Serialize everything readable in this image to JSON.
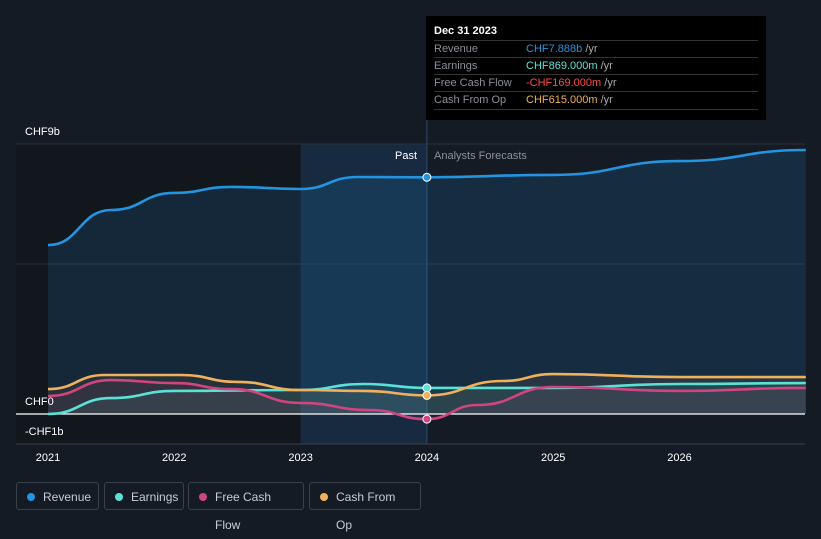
{
  "tooltip": {
    "date": "Dec 31 2023",
    "rows": [
      {
        "label": "Revenue",
        "value": "CHF7.888b",
        "unit": " /yr",
        "color": "#2394df"
      },
      {
        "label": "Earnings",
        "value": "CHF869.000m",
        "unit": " /yr",
        "color": "#5ce1d6"
      },
      {
        "label": "Free Cash Flow",
        "value": "-CHF169.000m",
        "unit": " /yr",
        "color": "#ff4d4d"
      },
      {
        "label": "Cash From Op",
        "value": "CHF615.000m",
        "unit": " /yr",
        "color": "#f0b15a"
      }
    ]
  },
  "labels": {
    "past": "Past",
    "forecast": "Analysts Forecasts"
  },
  "chart_data": {
    "type": "line",
    "ylabel_ticks": [
      {
        "v": 9,
        "label": "CHF9b"
      },
      {
        "v": 0,
        "label": "CHF0"
      },
      {
        "v": -1,
        "label": "-CHF1b"
      }
    ],
    "xticks": [
      2021,
      2022,
      2023,
      2024,
      2025,
      2026
    ],
    "xlim": [
      2020.75,
      2027
    ],
    "ylim": [
      -1,
      9
    ],
    "divider": 2024,
    "series": [
      {
        "name": "Revenue",
        "color": "#2394df",
        "points": [
          [
            2021,
            5.63
          ],
          [
            2021.5,
            6.8
          ],
          [
            2022,
            7.37
          ],
          [
            2022.45,
            7.57
          ],
          [
            2023,
            7.5
          ],
          [
            2023.45,
            7.9
          ],
          [
            2024,
            7.89
          ],
          [
            2025,
            7.97
          ],
          [
            2026,
            8.43
          ],
          [
            2027,
            8.8
          ]
        ]
      },
      {
        "name": "Earnings",
        "color": "#5ce1d6",
        "points": [
          [
            2021,
            0
          ],
          [
            2021.5,
            0.53
          ],
          [
            2022,
            0.77
          ],
          [
            2023,
            0.8
          ],
          [
            2023.5,
            1.0
          ],
          [
            2024,
            0.87
          ],
          [
            2025,
            0.87
          ],
          [
            2026,
            1.0
          ],
          [
            2027,
            1.03
          ]
        ]
      },
      {
        "name": "Free Cash Flow",
        "color": "#d0457f",
        "points": [
          [
            2021,
            0.6
          ],
          [
            2021.5,
            1.13
          ],
          [
            2022,
            1.03
          ],
          [
            2022.45,
            0.83
          ],
          [
            2023,
            0.37
          ],
          [
            2023.55,
            0.13
          ],
          [
            2024,
            -0.17
          ],
          [
            2024.4,
            0.3
          ],
          [
            2025,
            0.9
          ],
          [
            2026,
            0.77
          ],
          [
            2027,
            0.87
          ]
        ]
      },
      {
        "name": "Cash From Op",
        "color": "#f0b15a",
        "points": [
          [
            2021,
            0.83
          ],
          [
            2021.45,
            1.3
          ],
          [
            2022.05,
            1.3
          ],
          [
            2022.5,
            1.07
          ],
          [
            2023,
            0.8
          ],
          [
            2023.5,
            0.77
          ],
          [
            2024,
            0.62
          ],
          [
            2024.6,
            1.1
          ],
          [
            2025,
            1.33
          ],
          [
            2026,
            1.23
          ],
          [
            2027,
            1.23
          ]
        ]
      }
    ]
  }
}
